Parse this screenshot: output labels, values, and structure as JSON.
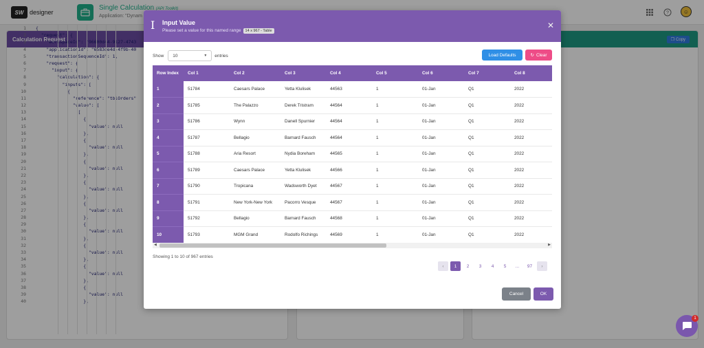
{
  "topbar": {
    "logo_mark": "SW",
    "logo_text": "designer",
    "app_title": "Single Calculation",
    "app_tag": "(API Toolkit)",
    "app_sub": "Application: \"Dynam",
    "icons": [
      "grid-icon",
      "help-icon",
      "avatar"
    ]
  },
  "left_panel": {
    "title": "Calculation Request"
  },
  "right_panel": {
    "copy_label": "Copy"
  },
  "code_lines": [
    {
      "n": "1",
      "t": "{"
    },
    {
      "n": "2",
      "t": "  \"request\": {"
    },
    {
      "n": "3",
      "t": "    \"workspaceId\": \"96600d44-9127-4743"
    },
    {
      "n": "4",
      "t": "    \"applicationId\": \"6583de4d-4f9b-40"
    },
    {
      "n": "5",
      "t": "    \"transactionSequenceId\": 1,"
    },
    {
      "n": "6",
      "t": "    \"request\": {"
    },
    {
      "n": "7",
      "t": "      \"input\": {"
    },
    {
      "n": "8",
      "t": "        \"calculation\": {"
    },
    {
      "n": "9",
      "t": "          \"inputs\": ["
    },
    {
      "n": "10",
      "t": "            {"
    },
    {
      "n": "11",
      "t": "              \"reference\": \"tblOrders\""
    },
    {
      "n": "12",
      "t": "              \"value\": ["
    },
    {
      "n": "13",
      "t": "                ["
    },
    {
      "n": "14",
      "t": "                  {"
    },
    {
      "n": "15",
      "t": "                    \"value\": null"
    },
    {
      "n": "16",
      "t": "                  },"
    },
    {
      "n": "17",
      "t": "                  {"
    },
    {
      "n": "18",
      "t": "                    \"value\": null"
    },
    {
      "n": "19",
      "t": "                  },"
    },
    {
      "n": "20",
      "t": "                  {"
    },
    {
      "n": "21",
      "t": "                    \"value\": null"
    },
    {
      "n": "22",
      "t": "                  },"
    },
    {
      "n": "23",
      "t": "                  {"
    },
    {
      "n": "24",
      "t": "                    \"value\": null"
    },
    {
      "n": "25",
      "t": "                  },"
    },
    {
      "n": "26",
      "t": "                  {"
    },
    {
      "n": "27",
      "t": "                    \"value\": null"
    },
    {
      "n": "28",
      "t": "                  },"
    },
    {
      "n": "29",
      "t": "                  {"
    },
    {
      "n": "30",
      "t": "                    \"value\": null"
    },
    {
      "n": "31",
      "t": "                  },"
    },
    {
      "n": "32",
      "t": "                  {"
    },
    {
      "n": "33",
      "t": "                    \"value\": null"
    },
    {
      "n": "34",
      "t": "                  },"
    },
    {
      "n": "35",
      "t": "                  {"
    },
    {
      "n": "36",
      "t": "                    \"value\": null"
    },
    {
      "n": "37",
      "t": "                  },"
    },
    {
      "n": "38",
      "t": "                  {"
    },
    {
      "n": "39",
      "t": "                    \"value\": null"
    },
    {
      "n": "40",
      "t": "                  },"
    }
  ],
  "modal": {
    "title": "Input Value",
    "subtitle": "Please set a value for this named range",
    "badge": "14 x 967 - Table",
    "close_icon": "close-icon",
    "show_label": "Show",
    "show_value": "10",
    "entries_label": "entries",
    "load_defaults": "Load Defaults",
    "clear": "Clear",
    "columns": [
      "Row Index",
      "Col 1",
      "Col 2",
      "Col 3",
      "Col 4",
      "Col 5",
      "Col 6",
      "Col 7",
      "Col 8"
    ],
    "rows": [
      [
        "1",
        "51784",
        "Caesars Palace",
        "Yetta Klulisek",
        "44563",
        "1",
        "01-Jan",
        "Q1",
        "2022"
      ],
      [
        "2",
        "51785",
        "The Palazzo",
        "Derek Tristram",
        "44564",
        "1",
        "01-Jan",
        "Q1",
        "2022"
      ],
      [
        "3",
        "51786",
        "Wynn",
        "Danell Spurnier",
        "44564",
        "1",
        "01-Jan",
        "Q1",
        "2022"
      ],
      [
        "4",
        "51787",
        "Bellagio",
        "Barnard Fausch",
        "44564",
        "1",
        "01-Jan",
        "Q1",
        "2022"
      ],
      [
        "5",
        "51788",
        "Aria Resort",
        "Nydia Boreham",
        "44565",
        "1",
        "01-Jan",
        "Q1",
        "2022"
      ],
      [
        "6",
        "51789",
        "Caesars Palace",
        "Yetta Klulisek",
        "44566",
        "1",
        "01-Jan",
        "Q1",
        "2022"
      ],
      [
        "7",
        "51790",
        "Tropicana",
        "Wadsworth Dyet",
        "44567",
        "1",
        "01-Jan",
        "Q1",
        "2022"
      ],
      [
        "8",
        "51791",
        "New York-New York",
        "Pacorro Vesque",
        "44567",
        "1",
        "01-Jan",
        "Q1",
        "2022"
      ],
      [
        "9",
        "51792",
        "Bellagio",
        "Barnard Fausch",
        "44568",
        "1",
        "01-Jan",
        "Q1",
        "2022"
      ],
      [
        "10",
        "51793",
        "MGM Grand",
        "Rodolfo Richings",
        "44569",
        "1",
        "01-Jan",
        "Q1",
        "2022"
      ]
    ],
    "info": "Showing 1 to 10 of 967 entries",
    "pages": [
      "1",
      "2",
      "3",
      "4",
      "5",
      "...",
      "97"
    ],
    "active_page": "1",
    "cancel": "Cancel",
    "ok": "OK"
  },
  "chat": {
    "badge": "1"
  }
}
